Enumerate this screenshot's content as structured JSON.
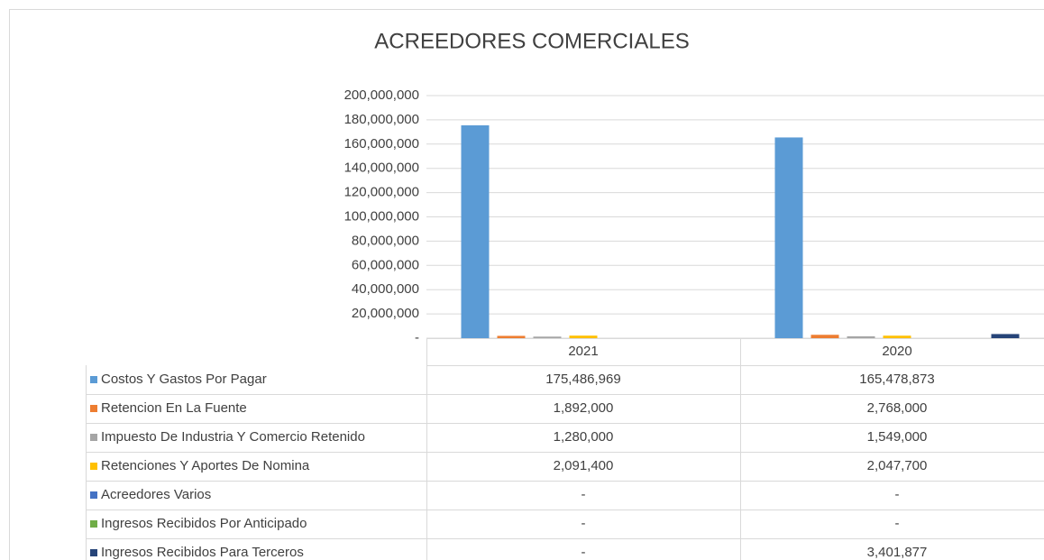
{
  "chart_data": {
    "type": "bar",
    "title": "ACREEDORES COMERCIALES",
    "categories": [
      "2021",
      "2020"
    ],
    "series": [
      {
        "name": "Costos Y Gastos Por Pagar",
        "color": "#5b9bd5",
        "values": [
          175486969,
          165478873
        ],
        "value_labels": [
          "175,486,969",
          "165,478,873"
        ]
      },
      {
        "name": "Retencion En La Fuente",
        "color": "#ed7d31",
        "values": [
          1892000,
          2768000
        ],
        "value_labels": [
          "1,892,000",
          "2,768,000"
        ]
      },
      {
        "name": "Impuesto De Industria Y Comercio Retenido",
        "color": "#a5a5a5",
        "values": [
          1280000,
          1549000
        ],
        "value_labels": [
          "1,280,000",
          "1,549,000"
        ]
      },
      {
        "name": "Retenciones Y Aportes De Nomina",
        "color": "#ffc000",
        "values": [
          2091400,
          2047700
        ],
        "value_labels": [
          "2,091,400",
          "2,047,700"
        ]
      },
      {
        "name": "Acreedores Varios",
        "color": "#4472c4",
        "values": [
          0,
          0
        ],
        "value_labels": [
          "-",
          "-"
        ]
      },
      {
        "name": "Ingresos Recibidos Por Anticipado",
        "color": "#70ad47",
        "values": [
          0,
          0
        ],
        "value_labels": [
          "-",
          "-"
        ]
      },
      {
        "name": "Ingresos Recibidos Para Terceros",
        "color": "#264478",
        "values": [
          0,
          3401877
        ],
        "value_labels": [
          "-",
          "3,401,877"
        ]
      }
    ],
    "ylim": [
      0,
      200000000
    ],
    "yticks": [
      {
        "value": 0,
        "label": "-"
      },
      {
        "value": 20000000,
        "label": "20,000,000"
      },
      {
        "value": 40000000,
        "label": "40,000,000"
      },
      {
        "value": 60000000,
        "label": "60,000,000"
      },
      {
        "value": 80000000,
        "label": "80,000,000"
      },
      {
        "value": 100000000,
        "label": "100,000,000"
      },
      {
        "value": 120000000,
        "label": "120,000,000"
      },
      {
        "value": 140000000,
        "label": "140,000,000"
      },
      {
        "value": 160000000,
        "label": "160,000,000"
      },
      {
        "value": 180000000,
        "label": "180,000,000"
      },
      {
        "value": 200000000,
        "label": "200,000,000"
      }
    ],
    "grid": true
  }
}
